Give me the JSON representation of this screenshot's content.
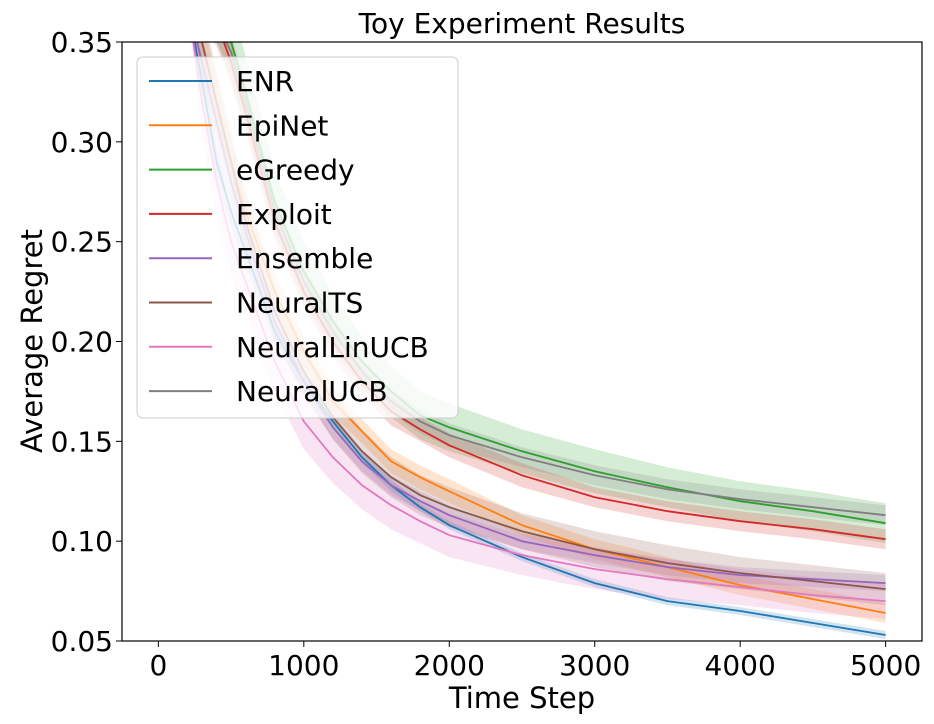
{
  "chart_data": {
    "type": "line",
    "title": "Toy Experiment Results",
    "xlabel": "Time Step",
    "ylabel": "Average Regret",
    "xlim": [
      -250,
      5250
    ],
    "ylim": [
      0.05,
      0.35
    ],
    "xticks": [
      0,
      1000,
      2000,
      3000,
      4000,
      5000
    ],
    "xtick_labels": [
      "0",
      "1000",
      "2000",
      "3000",
      "4000",
      "5000"
    ],
    "yticks": [
      0.05,
      0.1,
      0.15,
      0.2,
      0.25,
      0.3,
      0.35
    ],
    "ytick_labels": [
      "0.05",
      "0.10",
      "0.15",
      "0.20",
      "0.25",
      "0.30",
      "0.35"
    ],
    "grid": false,
    "legend_position": "top-left",
    "x": [
      0,
      200,
      300,
      400,
      500,
      600,
      800,
      1000,
      1200,
      1400,
      1600,
      1800,
      2000,
      2500,
      3000,
      3500,
      4000,
      4500,
      5000
    ],
    "series": [
      {
        "name": "ENR",
        "color": "#1f77b4",
        "values": [
          0.37,
          0.37,
          0.33,
          0.29,
          0.265,
          0.245,
          0.205,
          0.18,
          0.16,
          0.142,
          0.128,
          0.117,
          0.108,
          0.092,
          0.079,
          0.07,
          0.065,
          0.059,
          0.053
        ],
        "band": [
          0.0,
          0.0,
          0.01,
          0.009,
          0.008,
          0.007,
          0.006,
          0.005,
          0.004,
          0.003,
          0.003,
          0.002,
          0.002,
          0.002,
          0.002,
          0.002,
          0.002,
          0.002,
          0.002
        ]
      },
      {
        "name": "EpiNet",
        "color": "#ff7f0e",
        "values": [
          0.37,
          0.37,
          0.35,
          0.32,
          0.29,
          0.265,
          0.225,
          0.195,
          0.17,
          0.155,
          0.14,
          0.132,
          0.125,
          0.108,
          0.096,
          0.087,
          0.078,
          0.071,
          0.064
        ],
        "band": [
          0.0,
          0.0,
          0.012,
          0.012,
          0.011,
          0.01,
          0.009,
          0.008,
          0.007,
          0.006,
          0.006,
          0.006,
          0.006,
          0.005,
          0.005,
          0.005,
          0.005,
          0.005,
          0.005
        ]
      },
      {
        "name": "eGreedy",
        "color": "#2ca02c",
        "values": [
          0.37,
          0.37,
          0.37,
          0.37,
          0.35,
          0.325,
          0.27,
          0.235,
          0.21,
          0.19,
          0.175,
          0.163,
          0.157,
          0.145,
          0.135,
          0.127,
          0.12,
          0.115,
          0.109
        ],
        "band": [
          0.0,
          0.0,
          0.02,
          0.02,
          0.019,
          0.018,
          0.016,
          0.015,
          0.014,
          0.013,
          0.013,
          0.012,
          0.012,
          0.011,
          0.011,
          0.01,
          0.01,
          0.01,
          0.01
        ]
      },
      {
        "name": "Exploit",
        "color": "#d62728",
        "values": [
          0.37,
          0.37,
          0.37,
          0.36,
          0.34,
          0.315,
          0.26,
          0.225,
          0.2,
          0.18,
          0.165,
          0.156,
          0.148,
          0.133,
          0.122,
          0.115,
          0.11,
          0.106,
          0.101
        ],
        "band": [
          0.0,
          0.0,
          0.012,
          0.012,
          0.011,
          0.01,
          0.009,
          0.008,
          0.008,
          0.007,
          0.007,
          0.006,
          0.006,
          0.006,
          0.005,
          0.005,
          0.005,
          0.005,
          0.005
        ]
      },
      {
        "name": "Ensemble",
        "color": "#9467bd",
        "values": [
          0.37,
          0.37,
          0.34,
          0.31,
          0.28,
          0.255,
          0.21,
          0.18,
          0.157,
          0.14,
          0.128,
          0.12,
          0.113,
          0.1,
          0.093,
          0.087,
          0.083,
          0.081,
          0.079
        ],
        "band": [
          0.0,
          0.0,
          0.01,
          0.01,
          0.009,
          0.008,
          0.007,
          0.006,
          0.006,
          0.005,
          0.005,
          0.005,
          0.005,
          0.004,
          0.004,
          0.004,
          0.004,
          0.004,
          0.004
        ]
      },
      {
        "name": "NeuralTS",
        "color": "#8c564b",
        "values": [
          0.37,
          0.37,
          0.35,
          0.32,
          0.29,
          0.26,
          0.215,
          0.185,
          0.162,
          0.145,
          0.132,
          0.123,
          0.117,
          0.105,
          0.096,
          0.089,
          0.084,
          0.08,
          0.076
        ],
        "band": [
          0.0,
          0.0,
          0.016,
          0.016,
          0.015,
          0.014,
          0.013,
          0.012,
          0.011,
          0.011,
          0.01,
          0.01,
          0.01,
          0.009,
          0.009,
          0.009,
          0.008,
          0.008,
          0.008
        ]
      },
      {
        "name": "NeuralLinUCB",
        "color": "#e377c2",
        "values": [
          0.37,
          0.37,
          0.32,
          0.28,
          0.25,
          0.23,
          0.19,
          0.16,
          0.142,
          0.128,
          0.118,
          0.11,
          0.103,
          0.093,
          0.086,
          0.081,
          0.077,
          0.073,
          0.07
        ],
        "band": [
          0.0,
          0.0,
          0.018,
          0.018,
          0.017,
          0.016,
          0.015,
          0.014,
          0.013,
          0.012,
          0.012,
          0.011,
          0.011,
          0.01,
          0.01,
          0.01,
          0.009,
          0.009,
          0.009
        ]
      },
      {
        "name": "NeuralUCB",
        "color": "#7f7f7f",
        "values": [
          0.37,
          0.37,
          0.37,
          0.36,
          0.345,
          0.32,
          0.265,
          0.23,
          0.205,
          0.185,
          0.17,
          0.16,
          0.153,
          0.142,
          0.133,
          0.126,
          0.121,
          0.117,
          0.113
        ],
        "band": [
          0.0,
          0.0,
          0.01,
          0.01,
          0.009,
          0.009,
          0.008,
          0.007,
          0.007,
          0.006,
          0.006,
          0.006,
          0.006,
          0.005,
          0.005,
          0.005,
          0.005,
          0.005,
          0.005
        ]
      }
    ]
  }
}
